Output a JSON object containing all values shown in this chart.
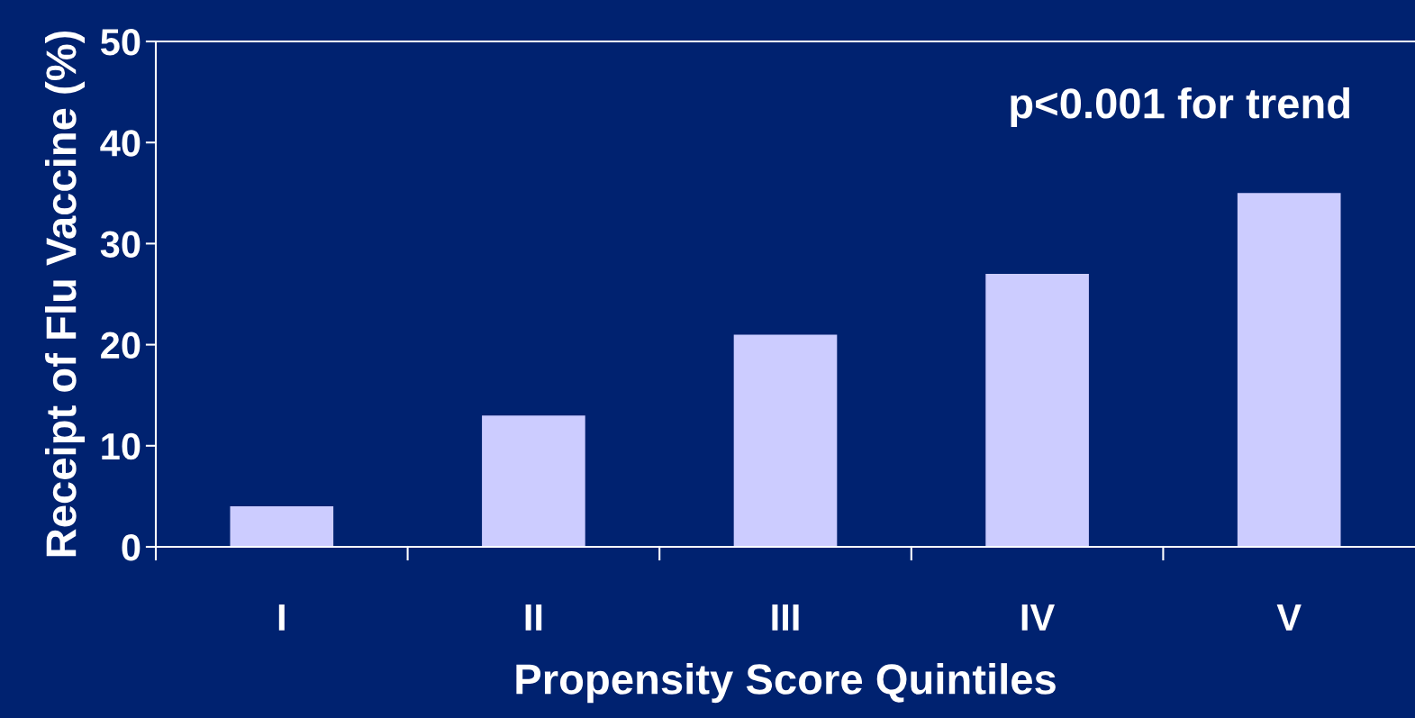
{
  "chart_data": {
    "type": "bar",
    "xlabel": "Propensity Score Quintiles",
    "ylabel": "Receipt of Flu Vaccine (%)",
    "categories": [
      "I",
      "II",
      "III",
      "IV",
      "V"
    ],
    "values": [
      4,
      13,
      21,
      27,
      35
    ],
    "color": "#ccccff",
    "ylim": [
      0,
      50
    ],
    "yticks": [
      0,
      10,
      20,
      30,
      40,
      50
    ],
    "grid": false,
    "annotations": [
      "p<0.001 for trend"
    ]
  }
}
